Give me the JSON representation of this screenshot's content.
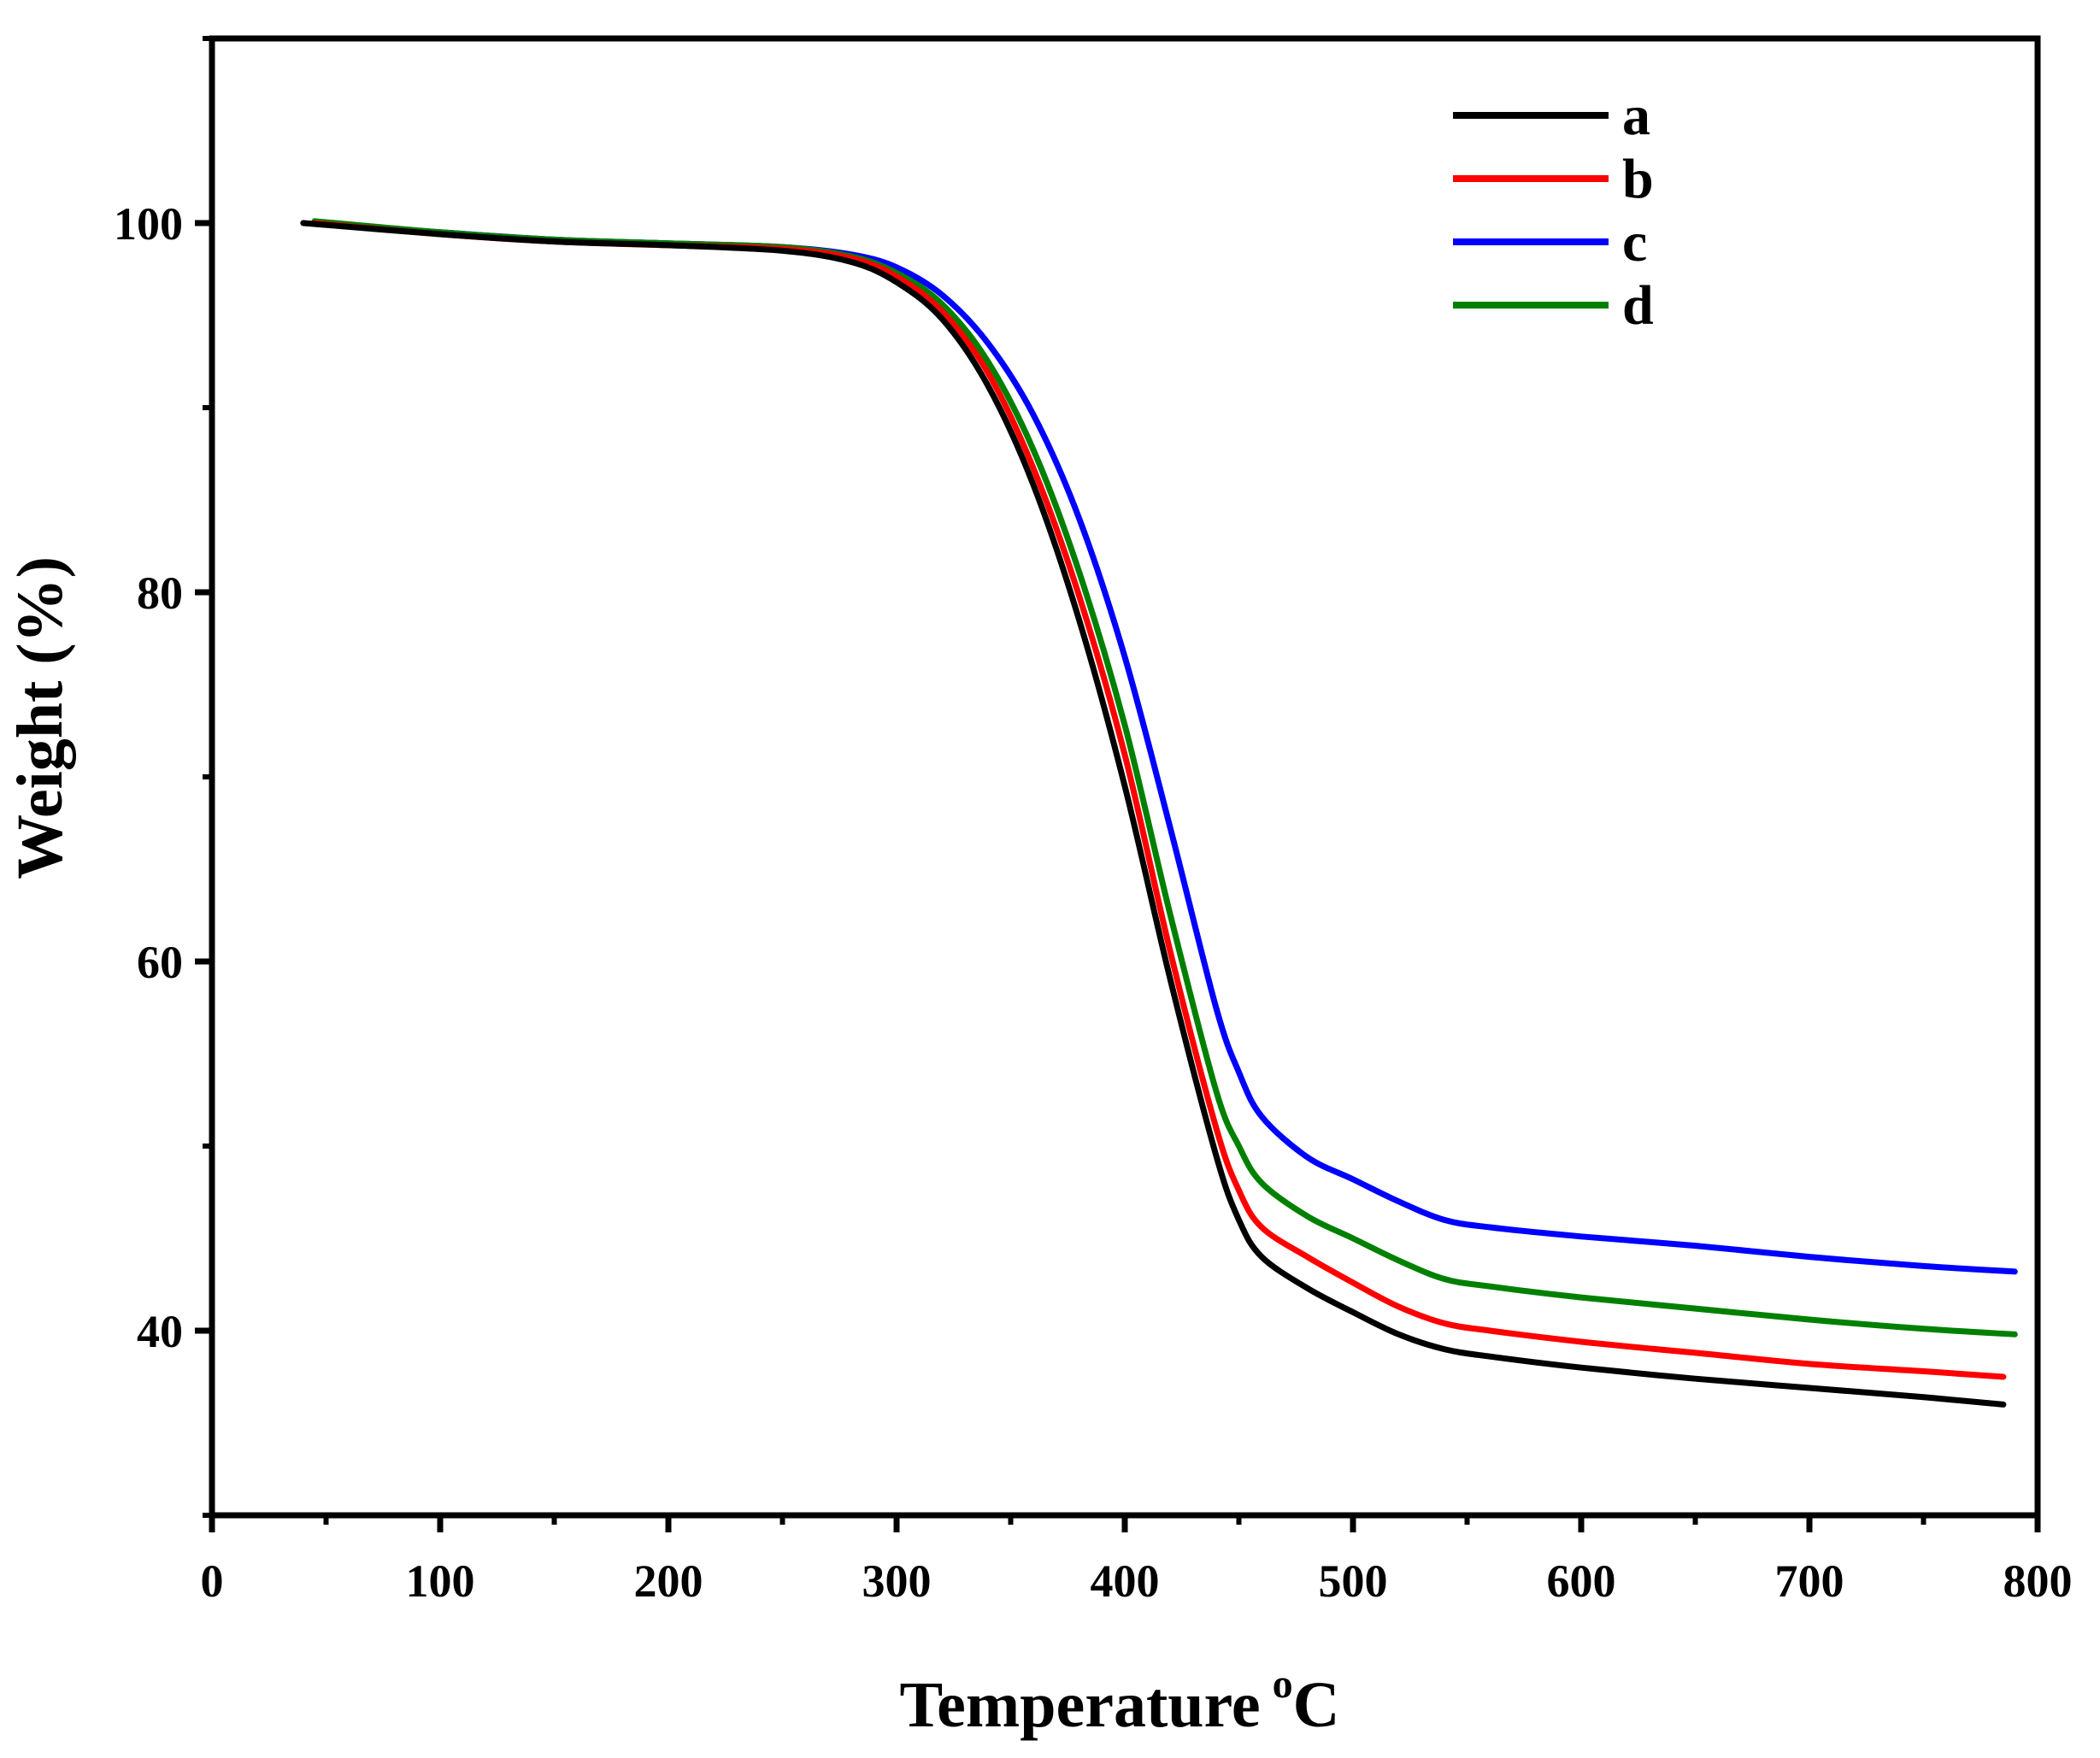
{
  "chart_data": {
    "type": "line",
    "title": "",
    "xlabel": "Temperature",
    "xlabel_unit_sup": "o",
    "xlabel_unit": "C",
    "ylabel": "Weight (%)",
    "xlim": [
      0,
      800
    ],
    "ylim": [
      30,
      110
    ],
    "xticks": [
      0,
      100,
      200,
      300,
      400,
      500,
      600,
      700,
      800
    ],
    "xtick_labels": [
      "0",
      "100",
      "200",
      "300",
      "400",
      "500",
      "600",
      "700",
      "800"
    ],
    "yticks": [
      40,
      60,
      80,
      100
    ],
    "ytick_labels": [
      "40",
      "60",
      "80",
      "100"
    ],
    "grid": false,
    "legend_position": "top-right",
    "series": [
      {
        "name": "a",
        "color": "#000000",
        "points": [
          [
            40,
            100
          ],
          [
            100,
            99.4
          ],
          [
            150,
            99.0
          ],
          [
            200,
            98.8
          ],
          [
            250,
            98.5
          ],
          [
            280,
            97.9
          ],
          [
            300,
            96.8
          ],
          [
            320,
            94.8
          ],
          [
            340,
            91.2
          ],
          [
            360,
            85.8
          ],
          [
            380,
            78.5
          ],
          [
            400,
            69.5
          ],
          [
            420,
            59.0
          ],
          [
            440,
            49.5
          ],
          [
            450,
            46.0
          ],
          [
            460,
            44.0
          ],
          [
            480,
            42.3
          ],
          [
            500,
            41.0
          ],
          [
            520,
            39.8
          ],
          [
            540,
            39.0
          ],
          [
            560,
            38.6
          ],
          [
            600,
            38.0
          ],
          [
            650,
            37.4
          ],
          [
            700,
            36.9
          ],
          [
            750,
            36.4
          ],
          [
            785,
            36.0
          ]
        ]
      },
      {
        "name": "b",
        "color": "#ff0000",
        "points": [
          [
            45,
            100
          ],
          [
            100,
            99.4
          ],
          [
            150,
            99.0
          ],
          [
            200,
            98.8
          ],
          [
            250,
            98.6
          ],
          [
            280,
            98.1
          ],
          [
            300,
            97.1
          ],
          [
            320,
            95.2
          ],
          [
            340,
            91.9
          ],
          [
            360,
            86.7
          ],
          [
            380,
            79.8
          ],
          [
            400,
            71.2
          ],
          [
            420,
            60.5
          ],
          [
            440,
            51.0
          ],
          [
            450,
            47.6
          ],
          [
            460,
            45.6
          ],
          [
            480,
            44.0
          ],
          [
            500,
            42.6
          ],
          [
            520,
            41.3
          ],
          [
            540,
            40.4
          ],
          [
            560,
            40.0
          ],
          [
            600,
            39.4
          ],
          [
            650,
            38.8
          ],
          [
            700,
            38.2
          ],
          [
            750,
            37.8
          ],
          [
            785,
            37.5
          ]
        ]
      },
      {
        "name": "c",
        "color": "#0000ff",
        "points": [
          [
            45,
            100
          ],
          [
            100,
            99.5
          ],
          [
            150,
            99.1
          ],
          [
            200,
            98.9
          ],
          [
            250,
            98.7
          ],
          [
            280,
            98.3
          ],
          [
            300,
            97.6
          ],
          [
            320,
            96.1
          ],
          [
            340,
            93.5
          ],
          [
            360,
            89.6
          ],
          [
            380,
            84.0
          ],
          [
            400,
            76.5
          ],
          [
            420,
            67.2
          ],
          [
            440,
            57.5
          ],
          [
            450,
            54.0
          ],
          [
            460,
            51.6
          ],
          [
            480,
            49.4
          ],
          [
            500,
            48.2
          ],
          [
            520,
            47.0
          ],
          [
            540,
            46.0
          ],
          [
            560,
            45.6
          ],
          [
            600,
            45.1
          ],
          [
            650,
            44.6
          ],
          [
            700,
            44.0
          ],
          [
            750,
            43.5
          ],
          [
            790,
            43.2
          ]
        ]
      },
      {
        "name": "d",
        "color": "#008000",
        "points": [
          [
            45,
            100.1
          ],
          [
            100,
            99.5
          ],
          [
            150,
            99.1
          ],
          [
            200,
            98.9
          ],
          [
            250,
            98.7
          ],
          [
            280,
            98.2
          ],
          [
            300,
            97.3
          ],
          [
            320,
            95.6
          ],
          [
            340,
            92.5
          ],
          [
            360,
            87.7
          ],
          [
            380,
            81.1
          ],
          [
            400,
            72.8
          ],
          [
            420,
            62.5
          ],
          [
            440,
            53.0
          ],
          [
            450,
            50.0
          ],
          [
            460,
            48.0
          ],
          [
            480,
            46.2
          ],
          [
            500,
            45.0
          ],
          [
            520,
            43.8
          ],
          [
            540,
            42.8
          ],
          [
            560,
            42.4
          ],
          [
            600,
            41.8
          ],
          [
            650,
            41.2
          ],
          [
            700,
            40.6
          ],
          [
            750,
            40.1
          ],
          [
            790,
            39.8
          ]
        ]
      }
    ]
  }
}
